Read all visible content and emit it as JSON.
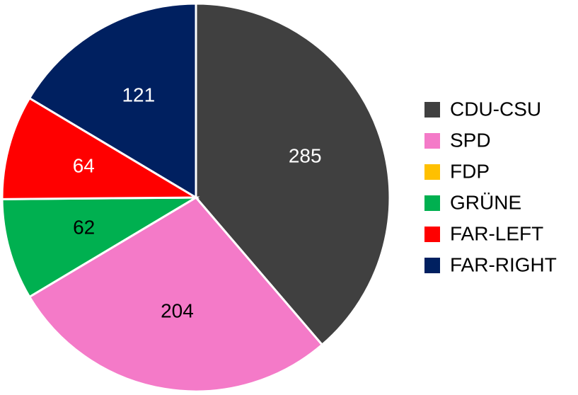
{
  "chart_data": {
    "type": "pie",
    "categories": [
      "CDU-CSU",
      "SPD",
      "FDP",
      "GRÜNE",
      "FAR-LEFT",
      "FAR-RIGHT"
    ],
    "values": [
      285,
      204,
      0,
      62,
      64,
      121
    ],
    "colors": [
      "#404040",
      "#f47ac8",
      "#ffc000",
      "#00b050",
      "#ff0000",
      "#002060"
    ],
    "legend": "right"
  }
}
